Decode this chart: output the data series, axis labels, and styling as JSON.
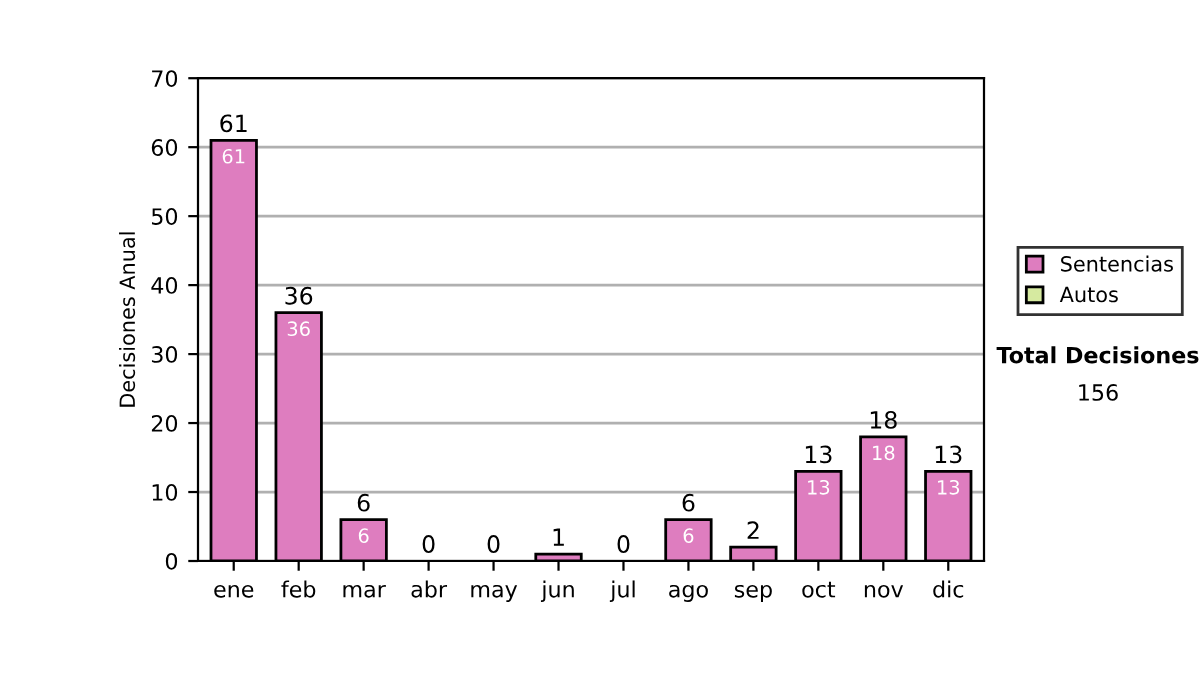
{
  "chart_data": {
    "type": "bar",
    "stacked": true,
    "ylabel": "Decisiones Anual",
    "categories": [
      "ene",
      "feb",
      "mar",
      "abr",
      "may",
      "jun",
      "jul",
      "ago",
      "sep",
      "oct",
      "nov",
      "dic"
    ],
    "series": [
      {
        "name": "Sentencias",
        "color": "#de7dbf",
        "values": [
          61,
          36,
          6,
          0,
          0,
          1,
          0,
          6,
          2,
          13,
          18,
          13
        ],
        "value_labels": [
          "61",
          "36",
          "6",
          null,
          null,
          null,
          null,
          "6",
          null,
          "13",
          "18",
          "13"
        ]
      },
      {
        "name": "Autos",
        "color": "#d6eaa0",
        "values": [
          0,
          0,
          0,
          0,
          0,
          0,
          0,
          0,
          0,
          0,
          0,
          0
        ]
      }
    ],
    "totals": [
      "61",
      "36",
      "6",
      "0",
      "0",
      "1",
      "0",
      "6",
      "2",
      "13",
      "18",
      "13"
    ],
    "ylim": [
      0,
      70
    ],
    "yticks": [
      0,
      10,
      20,
      30,
      40,
      50,
      60,
      70
    ],
    "grid": "y",
    "legend": "right",
    "annotations": [
      "Total Decisiones",
      "156"
    ]
  }
}
